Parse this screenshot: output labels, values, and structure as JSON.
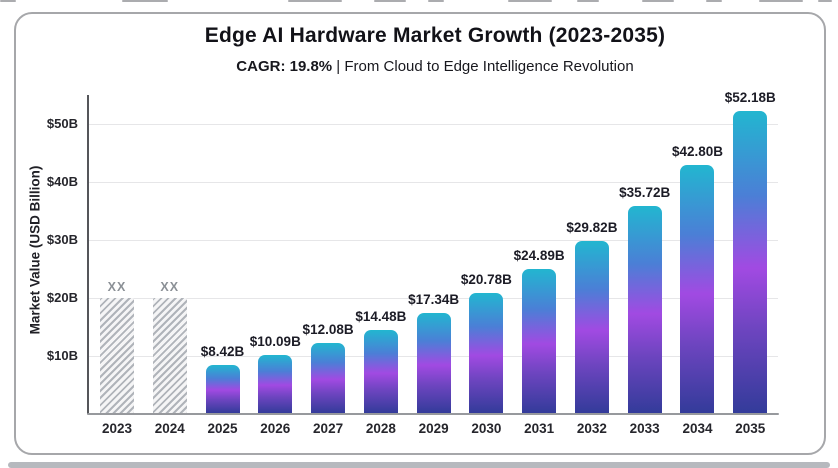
{
  "page": {
    "title": "Edge AI Hardware Market Growth (2023-2035)",
    "subtitle_bold": "CAGR: 19.8%",
    "subtitle_separator": " | ",
    "subtitle_text": "From Cloud to Edge Intelligence Revolution"
  },
  "chart_data": {
    "type": "bar",
    "title": "Edge AI Hardware Market Growth (2023-2035)",
    "subtitle": "CAGR: 19.8% | From Cloud to Edge Intelligence Revolution",
    "ylabel": "Market Value (USD Billion)",
    "xlabel": "",
    "categories": [
      "2023",
      "2024",
      "2025",
      "2026",
      "2027",
      "2028",
      "2029",
      "2030",
      "2031",
      "2032",
      "2033",
      "2034",
      "2035"
    ],
    "values": [
      null,
      null,
      8.42,
      10.09,
      12.08,
      14.48,
      17.34,
      20.78,
      24.89,
      29.82,
      35.72,
      42.8,
      52.18
    ],
    "bar_labels": [
      "XX",
      "XX",
      "$8.42B",
      "$10.09B",
      "$12.08B",
      "$14.48B",
      "$17.34B",
      "$20.78B",
      "$24.89B",
      "$29.82B",
      "$35.72B",
      "$42.80B",
      "$52.18B"
    ],
    "placeholder_bars": {
      "categories": [
        "2023",
        "2024"
      ],
      "label": "XX",
      "display_height_billion": 20,
      "style": "gray-diagonal-hatch"
    },
    "ylim": [
      0,
      55
    ],
    "ytick_labels": [
      "$10B",
      "$20B",
      "$30B",
      "$40B",
      "$50B"
    ],
    "ytick_values": [
      10,
      20,
      30,
      40,
      50
    ],
    "grid": true,
    "legend": "none",
    "colors": {
      "bar_gradient_top": "#22b6d0",
      "bar_gradient_blue": "#4b7fd6",
      "bar_gradient_purple": "#a14ae2",
      "bar_gradient_bottom": "#333b9a",
      "hatch_stripe": "#b0b4ba",
      "axis_line": "#55565a",
      "grid_line": "#e6e6e8",
      "value_label_text": "#1c1c26",
      "placeholder_label_text": "#8b9096"
    }
  }
}
